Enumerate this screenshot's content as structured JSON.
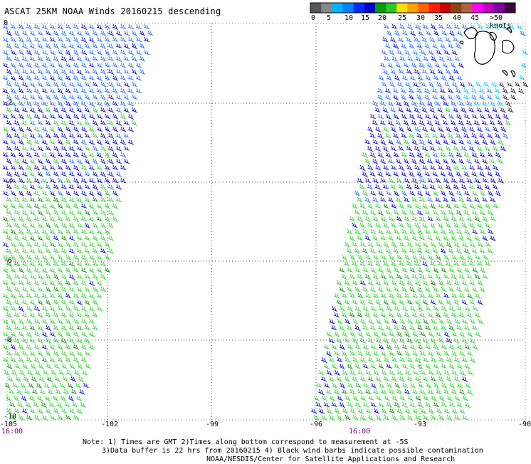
{
  "title": "ASCAT 25KM NOAA Winds 20160215 descending",
  "legend": {
    "colors": [
      "#555555",
      "#888888",
      "#00b4ff",
      "#0080ff",
      "#0030ff",
      "#0000c8",
      "#00a000",
      "#28c828",
      "#ffe000",
      "#ffa000",
      "#ff6000",
      "#ff2000",
      "#d00000",
      "#8b4513",
      "#b06040",
      "#ff00ff",
      "#c000c0",
      "#8000a0",
      "#400040"
    ],
    "labels": [
      "0",
      "5",
      "10",
      "15",
      "20",
      "25",
      "30",
      "35",
      "40",
      "45",
      ">50 knots"
    ]
  },
  "axes": {
    "lat_labels": [
      "0",
      "-2",
      "-4",
      "-6",
      "-8",
      "-10"
    ],
    "lon_labels": [
      "-105",
      "-102",
      "-99",
      "-96",
      "-93",
      "-90"
    ],
    "time_labels": [
      "16:00",
      "16:00"
    ]
  },
  "notes": {
    "line1": "Note: 1) Times are GMT 2)Times along bottom correspond to measurement at -5S",
    "line2": "3)Data buffer is 22 hrs from 20160215 4) Black wind barbs indicate possible contamination",
    "line3": "NOAA/NESDIS/Center for Satellite Applications and Research"
  }
}
